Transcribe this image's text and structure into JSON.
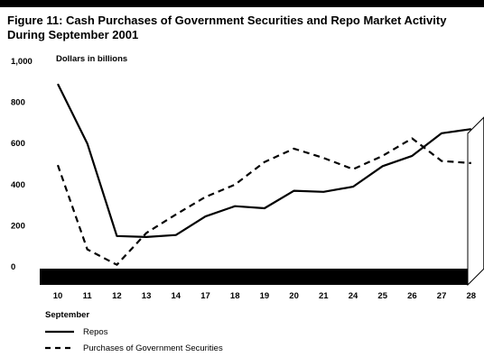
{
  "chart_data": {
    "type": "line",
    "title": "Figure 11: Cash Purchases of Government Securities and Repo Market Activity During September 2001",
    "ylabel": "Dollars in billions",
    "xlabel": "September",
    "categories": [
      "10",
      "11",
      "12",
      "13",
      "14",
      "17",
      "18",
      "19",
      "20",
      "21",
      "24",
      "25",
      "26",
      "27",
      "28"
    ],
    "ylim": [
      0,
      1000
    ],
    "yticks": [
      "1,000",
      "800",
      "600",
      "400",
      "200",
      "0"
    ],
    "ytick_values": [
      1000,
      800,
      600,
      400,
      200,
      0
    ],
    "series": [
      {
        "name": "Repos",
        "style": "solid",
        "values": [
          890,
          600,
          150,
          145,
          155,
          245,
          295,
          285,
          370,
          365,
          390,
          490,
          540,
          650,
          670
        ]
      },
      {
        "name": "Purchases of Government Securities",
        "style": "dashed",
        "values": [
          495,
          85,
          10,
          165,
          255,
          340,
          400,
          510,
          575,
          530,
          475,
          540,
          625,
          515,
          505
        ]
      }
    ],
    "legend_position": "bottom-left",
    "grid": false
  }
}
